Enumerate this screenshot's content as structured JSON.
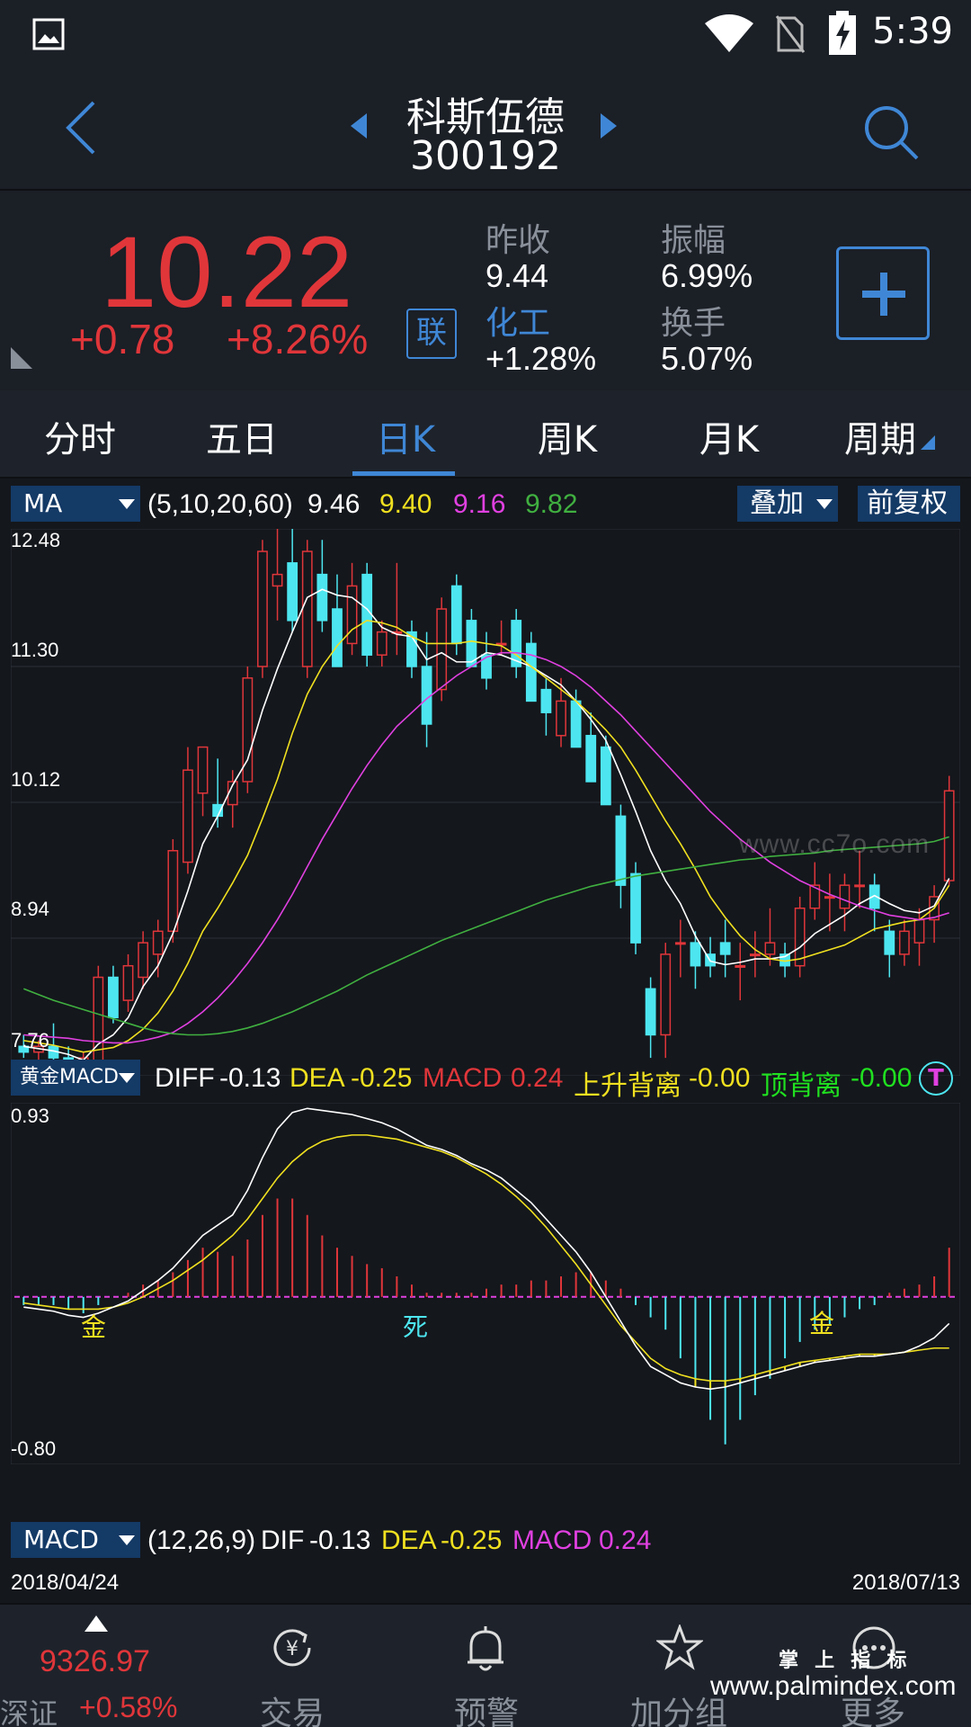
{
  "status_bar": {
    "time": "5:39"
  },
  "header": {
    "stock_name": "科斯伍德",
    "stock_code": "300192"
  },
  "quote": {
    "price": "10.22",
    "change": "+0.78",
    "change_pct": "+8.26%",
    "link_badge": "联",
    "prev_close_label": "昨收",
    "prev_close": "9.44",
    "sector_label": "化工",
    "sector_change": "+1.28%",
    "amplitude_label": "振幅",
    "amplitude": "6.99%",
    "turnover_label": "换手",
    "turnover": "5.07%"
  },
  "tabs": [
    "分时",
    "五日",
    "日K",
    "周K",
    "月K",
    "周期"
  ],
  "active_tab": "日K",
  "kline_panel": {
    "indicator": "MA",
    "params": "(5,10,20,60)",
    "ma_values": [
      "9.46",
      "9.40",
      "9.16",
      "9.82"
    ],
    "ma_colors": [
      "#ffffff",
      "#f0e020",
      "#e040e0",
      "#40b040"
    ],
    "overlay_button": "叠加",
    "adjust_button": "前复权",
    "y_ticks": [
      "12.48",
      "11.30",
      "10.12",
      "8.94",
      "7.76"
    ],
    "watermark": "www.cc7o.com"
  },
  "macd_panel": {
    "indicator": "黄金MACD",
    "diff_label": "DIFF",
    "diff": "-0.13",
    "dea_label": "DEA",
    "dea": "-0.25",
    "macd_label": "MACD",
    "macd": "0.24",
    "div_up_label": "上升背离",
    "div_up": "-0.00",
    "div_top_label": "顶背离",
    "div_top": "-0.00",
    "badge": "T",
    "y_max": "0.93",
    "y_min": "-0.80",
    "marks": [
      "金",
      "死",
      "金"
    ]
  },
  "macd_footer": {
    "indicator": "MACD",
    "params": "(12,26,9)",
    "dif_label": "DIF",
    "dif": "-0.13",
    "dea_label": "DEA",
    "dea": "-0.25",
    "macd_label": "MACD",
    "macd": "0.24"
  },
  "dates": {
    "start": "2018/04/24",
    "end": "2018/07/13"
  },
  "bottom_nav": {
    "index_value": "9326.97",
    "index_name": "深证",
    "index_change": "+0.58%",
    "items": [
      "交易",
      "预警",
      "加分组",
      "更多"
    ]
  },
  "footer_watermark": {
    "line1": "掌 上 指 标",
    "line2": "www.palmindex.com"
  },
  "colors": {
    "up": "#e0363a",
    "down": "#4de6f0",
    "accent": "#3f87d6"
  },
  "chart_data": [
    {
      "type": "candlestick",
      "title": "日K",
      "ylim": [
        7.76,
        12.48
      ],
      "ohlc": [
        [
          8.0,
          8.1,
          7.9,
          7.95
        ],
        [
          7.95,
          8.05,
          7.85,
          8.0
        ],
        [
          8.0,
          8.2,
          7.82,
          7.9
        ],
        [
          7.9,
          8.0,
          7.7,
          7.75
        ],
        [
          7.85,
          7.95,
          7.75,
          7.9
        ],
        [
          7.8,
          8.7,
          7.75,
          8.6
        ],
        [
          8.6,
          8.7,
          8.2,
          8.25
        ],
        [
          8.4,
          8.8,
          8.3,
          8.7
        ],
        [
          8.6,
          9.0,
          8.5,
          8.9
        ],
        [
          8.8,
          9.1,
          8.6,
          9.0
        ],
        [
          9.0,
          9.8,
          8.9,
          9.7
        ],
        [
          9.6,
          10.6,
          9.5,
          10.4
        ],
        [
          10.2,
          10.6,
          10.0,
          10.6
        ],
        [
          10.1,
          10.5,
          9.9,
          10.0
        ],
        [
          10.1,
          10.4,
          9.9,
          10.3
        ],
        [
          10.3,
          11.3,
          10.2,
          11.2
        ],
        [
          11.3,
          12.4,
          11.2,
          12.3
        ],
        [
          12.0,
          12.5,
          11.7,
          12.1
        ],
        [
          12.2,
          12.5,
          11.6,
          11.7
        ],
        [
          11.3,
          12.4,
          11.2,
          12.3
        ],
        [
          12.1,
          12.4,
          11.6,
          11.7
        ],
        [
          11.8,
          12.1,
          11.3,
          11.3
        ],
        [
          11.5,
          12.2,
          11.4,
          12.0
        ],
        [
          12.1,
          12.2,
          11.3,
          11.4
        ],
        [
          11.4,
          11.7,
          11.3,
          11.6
        ],
        [
          11.6,
          12.2,
          11.4,
          11.6
        ],
        [
          11.6,
          11.7,
          11.2,
          11.3
        ],
        [
          11.3,
          11.6,
          10.6,
          10.8
        ],
        [
          11.1,
          11.9,
          11.0,
          11.8
        ],
        [
          12.0,
          12.1,
          11.4,
          11.5
        ],
        [
          11.7,
          11.8,
          11.3,
          11.3
        ],
        [
          11.4,
          11.6,
          11.1,
          11.2
        ],
        [
          11.5,
          11.7,
          11.4,
          11.5
        ],
        [
          11.7,
          11.8,
          11.2,
          11.3
        ],
        [
          11.5,
          11.6,
          11.0,
          11.0
        ],
        [
          11.1,
          11.2,
          10.7,
          10.9
        ],
        [
          10.7,
          11.2,
          10.6,
          11.0
        ],
        [
          11.0,
          11.1,
          10.6,
          10.6
        ],
        [
          10.7,
          10.9,
          10.3,
          10.3
        ],
        [
          10.6,
          10.7,
          10.1,
          10.1
        ],
        [
          10.0,
          10.1,
          9.2,
          9.4
        ],
        [
          9.5,
          9.6,
          8.8,
          8.9
        ],
        [
          8.5,
          8.6,
          7.9,
          8.1
        ],
        [
          8.1,
          8.9,
          7.9,
          8.8
        ],
        [
          8.9,
          9.1,
          8.6,
          8.9
        ],
        [
          8.9,
          9.0,
          8.5,
          8.7
        ],
        [
          8.8,
          8.95,
          8.6,
          8.7
        ],
        [
          8.9,
          9.1,
          8.6,
          8.8
        ],
        [
          8.7,
          8.9,
          8.4,
          8.7
        ],
        [
          8.8,
          9.0,
          8.6,
          8.8
        ],
        [
          8.8,
          9.2,
          8.7,
          8.9
        ],
        [
          8.8,
          8.9,
          8.6,
          8.7
        ],
        [
          8.7,
          9.3,
          8.6,
          9.2
        ],
        [
          9.2,
          9.6,
          9.1,
          9.4
        ],
        [
          9.3,
          9.5,
          9.0,
          9.3
        ],
        [
          9.2,
          9.5,
          9.0,
          9.4
        ],
        [
          9.4,
          9.7,
          9.2,
          9.4
        ],
        [
          9.4,
          9.5,
          9.0,
          9.2
        ],
        [
          9.0,
          9.1,
          8.6,
          8.8
        ],
        [
          8.8,
          9.1,
          8.7,
          9.0
        ],
        [
          8.9,
          9.2,
          8.7,
          9.1
        ],
        [
          9.1,
          9.4,
          8.9,
          9.3
        ],
        [
          9.44,
          10.35,
          9.4,
          10.22
        ]
      ],
      "series": [
        {
          "name": "MA5",
          "color": "#ffffff",
          "values": [
            8.0,
            7.98,
            7.96,
            7.93,
            7.88,
            8.02,
            8.1,
            8.25,
            8.52,
            8.7,
            8.98,
            9.35,
            9.76,
            10.0,
            10.27,
            10.49,
            10.92,
            11.28,
            11.6,
            11.9,
            11.97,
            11.92,
            11.9,
            11.8,
            11.64,
            11.58,
            11.56,
            11.36,
            11.42,
            11.34,
            11.34,
            11.42,
            11.4,
            11.35,
            11.3,
            11.22,
            11.14,
            11.0,
            10.84,
            10.66,
            10.36,
            10.04,
            9.7,
            9.44,
            9.24,
            8.96,
            8.74,
            8.71,
            8.73,
            8.76,
            8.76,
            8.78,
            8.86,
            8.98,
            9.06,
            9.14,
            9.24,
            9.31,
            9.24,
            9.18,
            9.16,
            9.22,
            9.46
          ]
        },
        {
          "name": "MA10",
          "color": "#f0e020",
          "values": [
            8.05,
            8.03,
            8.01,
            7.98,
            7.95,
            7.97,
            7.99,
            8.05,
            8.15,
            8.29,
            8.48,
            8.72,
            9.0,
            9.2,
            9.42,
            9.66,
            9.98,
            10.32,
            10.72,
            11.06,
            11.3,
            11.48,
            11.62,
            11.7,
            11.68,
            11.64,
            11.56,
            11.5,
            11.5,
            11.5,
            11.52,
            11.5,
            11.48,
            11.4,
            11.3,
            11.2,
            11.1,
            11.0,
            10.88,
            10.75,
            10.6,
            10.4,
            10.18,
            9.96,
            9.76,
            9.54,
            9.3,
            9.12,
            8.96,
            8.84,
            8.76,
            8.74,
            8.76,
            8.8,
            8.84,
            8.88,
            8.95,
            9.02,
            9.05,
            9.08,
            9.1,
            9.2,
            9.4
          ]
        },
        {
          "name": "MA20",
          "color": "#e040e0",
          "values": [
            8.1,
            8.09,
            8.08,
            8.07,
            8.05,
            8.04,
            8.03,
            8.03,
            8.05,
            8.08,
            8.12,
            8.2,
            8.3,
            8.42,
            8.56,
            8.72,
            8.9,
            9.1,
            9.32,
            9.56,
            9.8,
            10.02,
            10.24,
            10.44,
            10.62,
            10.78,
            10.9,
            11.02,
            11.12,
            11.22,
            11.3,
            11.38,
            11.42,
            11.42,
            11.4,
            11.36,
            11.3,
            11.22,
            11.12,
            11.0,
            10.88,
            10.74,
            10.6,
            10.46,
            10.32,
            10.18,
            10.04,
            9.92,
            9.8,
            9.7,
            9.6,
            9.52,
            9.44,
            9.38,
            9.32,
            9.27,
            9.22,
            9.18,
            9.14,
            9.12,
            9.1,
            9.12,
            9.16
          ]
        },
        {
          "name": "MA60",
          "color": "#40b040",
          "values": [
            8.5,
            8.45,
            8.4,
            8.36,
            8.32,
            8.28,
            8.24,
            8.2,
            8.16,
            8.13,
            8.11,
            8.1,
            8.1,
            8.11,
            8.13,
            8.16,
            8.2,
            8.25,
            8.3,
            8.36,
            8.42,
            8.48,
            8.55,
            8.62,
            8.68,
            8.74,
            8.8,
            8.86,
            8.92,
            8.97,
            9.02,
            9.07,
            9.12,
            9.17,
            9.22,
            9.27,
            9.31,
            9.35,
            9.39,
            9.42,
            9.45,
            9.48,
            9.5,
            9.52,
            9.54,
            9.56,
            9.58,
            9.6,
            9.62,
            9.63,
            9.65,
            9.66,
            9.67,
            9.68,
            9.7,
            9.71,
            9.72,
            9.73,
            9.74,
            9.75,
            9.76,
            9.78,
            9.82
          ]
        }
      ]
    },
    {
      "type": "bar",
      "title": "黄金MACD",
      "ylim": [
        -0.8,
        0.93
      ],
      "series": [
        {
          "name": "DIFF",
          "color": "#ffffff",
          "values": [
            -0.05,
            -0.06,
            -0.07,
            -0.09,
            -0.1,
            -0.08,
            -0.05,
            -0.02,
            0.03,
            0.08,
            0.14,
            0.22,
            0.3,
            0.35,
            0.4,
            0.52,
            0.68,
            0.82,
            0.9,
            0.92,
            0.91,
            0.9,
            0.89,
            0.87,
            0.85,
            0.82,
            0.78,
            0.74,
            0.72,
            0.69,
            0.65,
            0.62,
            0.58,
            0.52,
            0.46,
            0.38,
            0.3,
            0.22,
            0.12,
            0.0,
            -0.12,
            -0.24,
            -0.34,
            -0.38,
            -0.42,
            -0.44,
            -0.45,
            -0.44,
            -0.42,
            -0.4,
            -0.38,
            -0.36,
            -0.34,
            -0.32,
            -0.31,
            -0.3,
            -0.29,
            -0.29,
            -0.28,
            -0.27,
            -0.24,
            -0.2,
            -0.13
          ]
        },
        {
          "name": "DEA",
          "color": "#f0e020",
          "values": [
            -0.03,
            -0.04,
            -0.05,
            -0.06,
            -0.06,
            -0.06,
            -0.05,
            -0.03,
            0.0,
            0.04,
            0.08,
            0.13,
            0.18,
            0.24,
            0.3,
            0.38,
            0.48,
            0.58,
            0.66,
            0.72,
            0.76,
            0.78,
            0.79,
            0.79,
            0.78,
            0.77,
            0.75,
            0.73,
            0.71,
            0.68,
            0.64,
            0.6,
            0.55,
            0.49,
            0.42,
            0.34,
            0.25,
            0.16,
            0.06,
            -0.04,
            -0.14,
            -0.22,
            -0.3,
            -0.35,
            -0.38,
            -0.4,
            -0.41,
            -0.41,
            -0.4,
            -0.38,
            -0.36,
            -0.34,
            -0.32,
            -0.31,
            -0.3,
            -0.29,
            -0.28,
            -0.28,
            -0.28,
            -0.27,
            -0.26,
            -0.25,
            -0.25
          ]
        },
        {
          "name": "MACD",
          "color": "#e0363a",
          "values": [
            -0.04,
            -0.04,
            -0.04,
            -0.06,
            -0.08,
            -0.04,
            0.0,
            0.02,
            0.06,
            0.08,
            0.12,
            0.18,
            0.24,
            0.22,
            0.2,
            0.28,
            0.4,
            0.48,
            0.48,
            0.4,
            0.3,
            0.24,
            0.2,
            0.16,
            0.14,
            0.1,
            0.06,
            0.02,
            0.02,
            0.02,
            0.02,
            0.04,
            0.06,
            0.06,
            0.08,
            0.08,
            0.1,
            0.12,
            0.12,
            0.08,
            0.04,
            -0.04,
            -0.1,
            -0.16,
            -0.3,
            -0.4,
            -0.6,
            -0.72,
            -0.6,
            -0.48,
            -0.4,
            -0.3,
            -0.22,
            -0.16,
            -0.14,
            -0.1,
            -0.06,
            -0.04,
            0.02,
            0.04,
            0.06,
            0.1,
            0.24
          ]
        }
      ]
    }
  ]
}
